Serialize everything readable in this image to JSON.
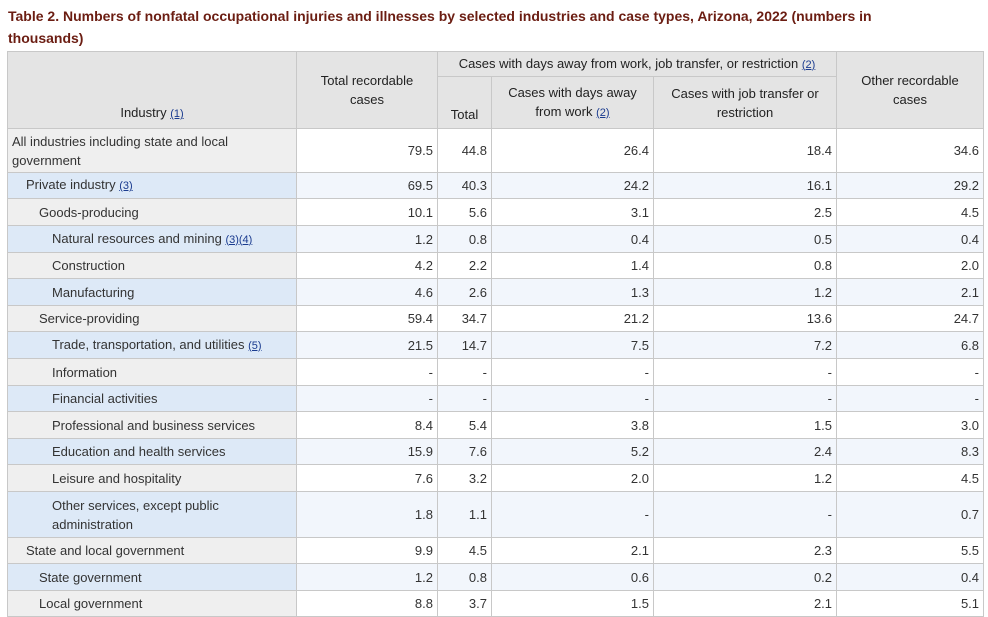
{
  "caption": "Table 2. Numbers of nonfatal occupational injuries and illnesses by selected industries and case types, Arizona, 2022 (numbers in thousands)",
  "header": {
    "industry": "Industry",
    "industry_fn": "(1)",
    "total_recordable": "Total recordable cases",
    "group": "Cases with days away from work, job transfer, or restriction",
    "group_fn": "(2)",
    "total": "Total",
    "days_away": "Cases with days away from work",
    "days_away_fn": "(2)",
    "job_transfer": "Cases with job transfer or restriction",
    "other": "Other recordable cases"
  },
  "rows": [
    {
      "label": "All industries including state and local government",
      "fn": "",
      "total_recordable": "79.5",
      "total": "44.8",
      "days_away": "26.4",
      "job_transfer": "18.4",
      "other": "34.6"
    },
    {
      "label": "Private industry",
      "fn": "(3)",
      "total_recordable": "69.5",
      "total": "40.3",
      "days_away": "24.2",
      "job_transfer": "16.1",
      "other": "29.2"
    },
    {
      "label": "Goods-producing",
      "fn": "",
      "total_recordable": "10.1",
      "total": "5.6",
      "days_away": "3.1",
      "job_transfer": "2.5",
      "other": "4.5"
    },
    {
      "label": "Natural resources and mining",
      "fn": "(3)(4)",
      "total_recordable": "1.2",
      "total": "0.8",
      "days_away": "0.4",
      "job_transfer": "0.5",
      "other": "0.4"
    },
    {
      "label": "Construction",
      "fn": "",
      "total_recordable": "4.2",
      "total": "2.2",
      "days_away": "1.4",
      "job_transfer": "0.8",
      "other": "2.0"
    },
    {
      "label": "Manufacturing",
      "fn": "",
      "total_recordable": "4.6",
      "total": "2.6",
      "days_away": "1.3",
      "job_transfer": "1.2",
      "other": "2.1"
    },
    {
      "label": "Service-providing",
      "fn": "",
      "total_recordable": "59.4",
      "total": "34.7",
      "days_away": "21.2",
      "job_transfer": "13.6",
      "other": "24.7"
    },
    {
      "label": "Trade, transportation, and utilities",
      "fn": "(5)",
      "total_recordable": "21.5",
      "total": "14.7",
      "days_away": "7.5",
      "job_transfer": "7.2",
      "other": "6.8"
    },
    {
      "label": "Information",
      "fn": "",
      "total_recordable": "-",
      "total": "-",
      "days_away": "-",
      "job_transfer": "-",
      "other": "-"
    },
    {
      "label": "Financial activities",
      "fn": "",
      "total_recordable": "-",
      "total": "-",
      "days_away": "-",
      "job_transfer": "-",
      "other": "-"
    },
    {
      "label": "Professional and business services",
      "fn": "",
      "total_recordable": "8.4",
      "total": "5.4",
      "days_away": "3.8",
      "job_transfer": "1.5",
      "other": "3.0"
    },
    {
      "label": "Education and health services",
      "fn": "",
      "total_recordable": "15.9",
      "total": "7.6",
      "days_away": "5.2",
      "job_transfer": "2.4",
      "other": "8.3"
    },
    {
      "label": "Leisure and hospitality",
      "fn": "",
      "total_recordable": "7.6",
      "total": "3.2",
      "days_away": "2.0",
      "job_transfer": "1.2",
      "other": "4.5"
    },
    {
      "label": "Other services, except public administration",
      "fn": "",
      "total_recordable": "1.8",
      "total": "1.1",
      "days_away": "-",
      "job_transfer": "-",
      "other": "0.7"
    },
    {
      "label": "State and local government",
      "fn": "",
      "total_recordable": "9.9",
      "total": "4.5",
      "days_away": "2.1",
      "job_transfer": "2.3",
      "other": "5.5"
    },
    {
      "label": "State government",
      "fn": "",
      "total_recordable": "1.2",
      "total": "0.8",
      "days_away": "0.6",
      "job_transfer": "0.2",
      "other": "0.4"
    },
    {
      "label": "Local government",
      "fn": "",
      "total_recordable": "8.8",
      "total": "3.7",
      "days_away": "1.5",
      "job_transfer": "2.1",
      "other": "5.1"
    }
  ]
}
